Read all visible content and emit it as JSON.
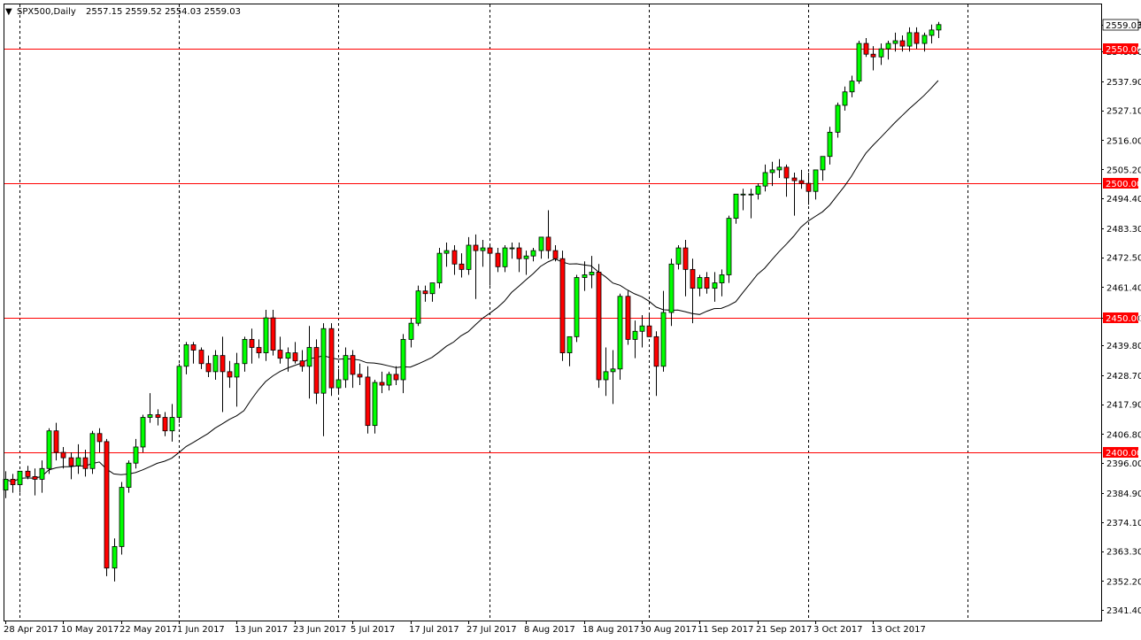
{
  "header": {
    "symbol": "SPX500,Daily",
    "ohlc": "2557.15 2559.52 2554.03 2559.03",
    "menu_glyph": "▼"
  },
  "colors": {
    "background": "#ffffff",
    "bull": "#00ff00",
    "bear": "#ff0000",
    "wick": "#000000",
    "level": "#ff0000",
    "ma": "#000000",
    "grid": "#000000"
  },
  "chart_data": {
    "type": "candlestick",
    "title": "SPX500,Daily",
    "xlabel": "",
    "ylabel": "",
    "ylim": [
      2337.5,
      2566.5
    ],
    "grid": true,
    "y_ticks": [
      "2559.03",
      "2549.00",
      "2537.90",
      "2527.10",
      "2516.00",
      "2505.20",
      "2494.40",
      "2483.30",
      "2472.50",
      "2461.40",
      "2450.00",
      "2439.80",
      "2428.70",
      "2417.90",
      "2406.80",
      "2396.00",
      "2384.90",
      "2374.10",
      "2363.30",
      "2352.20",
      "2341.40"
    ],
    "x_ticks": [
      "28 Apr 2017",
      "10 May 2017",
      "22 May 2017",
      "1 Jun 2017",
      "13 Jun 2017",
      "23 Jun 2017",
      "5 Jul 2017",
      "17 Jul 2017",
      "27 Jul 2017",
      "8 Aug 2017",
      "18 Aug 2017",
      "30 Aug 2017",
      "11 Sep 2017",
      "21 Sep 2017",
      "3 Oct 2017",
      "13 Oct 2017"
    ],
    "x_tick_bar_index": [
      0,
      8,
      16,
      24,
      32,
      40,
      48,
      56,
      64,
      72,
      80,
      88,
      96,
      104,
      112,
      120
    ],
    "vertical_grid_bar_index": [
      2,
      24,
      46,
      67,
      89,
      111,
      133
    ],
    "levels": [
      {
        "value": 2550.0,
        "label": "2550.00"
      },
      {
        "value": 2500.0,
        "label": "2500.00"
      },
      {
        "value": 2450.0,
        "label": "2450.00"
      },
      {
        "value": 2400.0,
        "label": "2400.00"
      }
    ],
    "last_price": {
      "value": 2559.03,
      "label": "2559.03"
    },
    "candles": [
      [
        2386,
        2393,
        2383,
        2390
      ],
      [
        2390,
        2392,
        2385,
        2388
      ],
      [
        2388,
        2393,
        2385,
        2393
      ],
      [
        2393,
        2395,
        2390,
        2391
      ],
      [
        2391,
        2394,
        2384,
        2390
      ],
      [
        2390,
        2397,
        2385,
        2394
      ],
      [
        2394,
        2409,
        2392,
        2408
      ],
      [
        2408,
        2411,
        2397,
        2400
      ],
      [
        2400,
        2402,
        2394,
        2398
      ],
      [
        2398,
        2400,
        2390,
        2395
      ],
      [
        2395,
        2403,
        2392,
        2398
      ],
      [
        2398,
        2401,
        2391,
        2394
      ],
      [
        2394,
        2408,
        2392,
        2407
      ],
      [
        2407,
        2409,
        2400,
        2404
      ],
      [
        2404,
        2405,
        2354,
        2357
      ],
      [
        2357,
        2368,
        2352,
        2365
      ],
      [
        2365,
        2389,
        2362,
        2387
      ],
      [
        2387,
        2397,
        2385,
        2396
      ],
      [
        2396,
        2405,
        2394,
        2402
      ],
      [
        2402,
        2414,
        2400,
        2413
      ],
      [
        2413,
        2422,
        2411,
        2414
      ],
      [
        2414,
        2416,
        2410,
        2413
      ],
      [
        2413,
        2415,
        2406,
        2408
      ],
      [
        2408,
        2418,
        2404,
        2413
      ],
      [
        2413,
        2433,
        2411,
        2432
      ],
      [
        2432,
        2441,
        2429,
        2440
      ],
      [
        2440,
        2441,
        2433,
        2438
      ],
      [
        2438,
        2439,
        2431,
        2433
      ],
      [
        2433,
        2436,
        2428,
        2430
      ],
      [
        2430,
        2438,
        2427,
        2436
      ],
      [
        2436,
        2443,
        2415,
        2430
      ],
      [
        2430,
        2434,
        2424,
        2428
      ],
      [
        2428,
        2437,
        2417,
        2433
      ],
      [
        2433,
        2443,
        2430,
        2442
      ],
      [
        2442,
        2446,
        2433,
        2439
      ],
      [
        2439,
        2442,
        2435,
        2437
      ],
      [
        2437,
        2453,
        2434,
        2450
      ],
      [
        2450,
        2453,
        2436,
        2438
      ],
      [
        2438,
        2443,
        2433,
        2435
      ],
      [
        2435,
        2439,
        2430,
        2437
      ],
      [
        2437,
        2441,
        2433,
        2434
      ],
      [
        2434,
        2438,
        2430,
        2432
      ],
      [
        2432,
        2447,
        2420,
        2439
      ],
      [
        2439,
        2442,
        2418,
        2422
      ],
      [
        2422,
        2448,
        2406,
        2446
      ],
      [
        2446,
        2448,
        2421,
        2424
      ],
      [
        2424,
        2431,
        2422,
        2427
      ],
      [
        2427,
        2439,
        2424,
        2436
      ],
      [
        2436,
        2438,
        2424,
        2429
      ],
      [
        2429,
        2433,
        2425,
        2428
      ],
      [
        2428,
        2432,
        2407,
        2410
      ],
      [
        2410,
        2427,
        2407,
        2426
      ],
      [
        2426,
        2430,
        2422,
        2425
      ],
      [
        2425,
        2430,
        2423,
        2429
      ],
      [
        2429,
        2432,
        2425,
        2427
      ],
      [
        2427,
        2444,
        2422,
        2442
      ],
      [
        2442,
        2450,
        2439,
        2448
      ],
      [
        2448,
        2462,
        2447,
        2460
      ],
      [
        2460,
        2462,
        2456,
        2459
      ],
      [
        2459,
        2463,
        2456,
        2463
      ],
      [
        2463,
        2476,
        2461,
        2474
      ],
      [
        2474,
        2478,
        2469,
        2475
      ],
      [
        2475,
        2477,
        2466,
        2470
      ],
      [
        2470,
        2474,
        2465,
        2468
      ],
      [
        2468,
        2480,
        2466,
        2477
      ],
      [
        2477,
        2481,
        2457,
        2475
      ],
      [
        2475,
        2479,
        2469,
        2476
      ],
      [
        2476,
        2477,
        2462,
        2474
      ],
      [
        2474,
        2476,
        2467,
        2469
      ],
      [
        2469,
        2477,
        2467,
        2476
      ],
      [
        2476,
        2478,
        2472,
        2476
      ],
      [
        2476,
        2478,
        2467,
        2472
      ],
      [
        2472,
        2475,
        2466,
        2473
      ],
      [
        2473,
        2476,
        2471,
        2475
      ],
      [
        2475,
        2480,
        2472,
        2480
      ],
      [
        2480,
        2490,
        2472,
        2475
      ],
      [
        2475,
        2477,
        2471,
        2472
      ],
      [
        2472,
        2475,
        2434,
        2437
      ],
      [
        2437,
        2443,
        2432,
        2443
      ],
      [
        2443,
        2466,
        2441,
        2465
      ],
      [
        2465,
        2471,
        2460,
        2466
      ],
      [
        2466,
        2473,
        2461,
        2467
      ],
      [
        2467,
        2470,
        2424,
        2427
      ],
      [
        2427,
        2439,
        2421,
        2430
      ],
      [
        2430,
        2438,
        2418,
        2431
      ],
      [
        2431,
        2459,
        2427,
        2458
      ],
      [
        2458,
        2460,
        2440,
        2442
      ],
      [
        2442,
        2449,
        2435,
        2445
      ],
      [
        2445,
        2451,
        2439,
        2447
      ],
      [
        2447,
        2452,
        2443,
        2443
      ],
      [
        2443,
        2445,
        2421,
        2432
      ],
      [
        2432,
        2460,
        2430,
        2452
      ],
      [
        2452,
        2472,
        2447,
        2470
      ],
      [
        2470,
        2477,
        2468,
        2476
      ],
      [
        2476,
        2479,
        2458,
        2468
      ],
      [
        2468,
        2472,
        2448,
        2461
      ],
      [
        2461,
        2466,
        2458,
        2465
      ],
      [
        2465,
        2467,
        2459,
        2461
      ],
      [
        2461,
        2467,
        2456,
        2463
      ],
      [
        2463,
        2468,
        2458,
        2466
      ],
      [
        2466,
        2488,
        2463,
        2487
      ],
      [
        2487,
        2496,
        2485,
        2496
      ],
      [
        2496,
        2498,
        2490,
        2496
      ],
      [
        2496,
        2498,
        2487,
        2496
      ],
      [
        2496,
        2500,
        2494,
        2499
      ],
      [
        2499,
        2507,
        2497,
        2504
      ],
      [
        2504,
        2508,
        2499,
        2505
      ],
      [
        2505,
        2509,
        2502,
        2506
      ],
      [
        2506,
        2507,
        2495,
        2502
      ],
      [
        2502,
        2504,
        2488,
        2501
      ],
      [
        2501,
        2505,
        2498,
        2500
      ],
      [
        2500,
        2504,
        2492,
        2497
      ],
      [
        2497,
        2505,
        2494,
        2505
      ],
      [
        2505,
        2510,
        2501,
        2510
      ],
      [
        2510,
        2521,
        2507,
        2519
      ],
      [
        2519,
        2530,
        2517,
        2529
      ],
      [
        2529,
        2536,
        2527,
        2534
      ],
      [
        2534,
        2540,
        2532,
        2538
      ],
      [
        2538,
        2553,
        2537,
        2552
      ],
      [
        2552,
        2554,
        2547,
        2548
      ],
      [
        2548,
        2551,
        2542,
        2547
      ],
      [
        2547,
        2552,
        2544,
        2550
      ],
      [
        2550,
        2553,
        2546,
        2552
      ],
      [
        2552,
        2556,
        2549,
        2553
      ],
      [
        2553,
        2555,
        2549,
        2551
      ],
      [
        2551,
        2558,
        2549,
        2556
      ],
      [
        2556,
        2558,
        2550,
        2552
      ],
      [
        2552,
        2556,
        2549,
        2555
      ],
      [
        2555,
        2559,
        2552,
        2557
      ],
      [
        2557,
        2560,
        2554,
        2559
      ]
    ]
  }
}
